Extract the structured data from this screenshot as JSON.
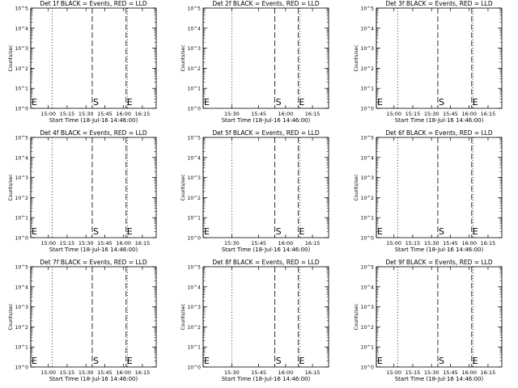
{
  "chart_data": [
    {
      "type": "line",
      "title": "Det 1f BLACK = Events, RED = LLD",
      "xlabel": "Start Time (18-Jul-16 14:46:00)",
      "ylabel": "Counts/sec",
      "xticks": [
        "15:00",
        "15:15",
        "15:30",
        "15:45",
        "16:00",
        "16:15"
      ],
      "yticks": [
        "10^0",
        "10^1",
        "10^2",
        "10^3",
        "10^4",
        "10^5"
      ],
      "ylim": [
        1,
        100000
      ],
      "yscale": "log",
      "xlim": [
        "14:46",
        "16:26"
      ],
      "markers": [
        {
          "label": "E",
          "x": "14:46",
          "style": "solid"
        },
        {
          "label": "",
          "x": "15:03",
          "style": "dotted"
        },
        {
          "label": "S",
          "x": "15:35",
          "style": "dashed"
        },
        {
          "label": "E",
          "x": "16:02",
          "style": "dashed"
        },
        {
          "label": "",
          "x": "16:03",
          "style": "dotted"
        },
        {
          "label": "",
          "x": "16:26",
          "style": "dotted"
        }
      ],
      "series": []
    },
    {
      "type": "line",
      "title": "Det 2f BLACK = Events, RED = LLD",
      "xlabel": "Start Time (18-Jul-16 14:46:00)",
      "ylabel": "Counts/sec",
      "xticks": [
        "15:30",
        "15:45",
        "16:00",
        "16:15"
      ],
      "yticks": [
        "10^0",
        "10^1",
        "10^2",
        "10^3",
        "10^4",
        "10^5"
      ],
      "ylim": [
        1,
        100000
      ],
      "yscale": "log",
      "xlim": [
        "15:14",
        "16:24"
      ],
      "markers": [
        {
          "label": "E",
          "x": "15:14",
          "style": "solid"
        },
        {
          "label": "",
          "x": "15:30",
          "style": "dotted"
        },
        {
          "label": "S",
          "x": "15:54",
          "style": "dashed"
        },
        {
          "label": "E",
          "x": "16:07",
          "style": "dashed"
        },
        {
          "label": "",
          "x": "16:08",
          "style": "dotted"
        },
        {
          "label": "",
          "x": "16:24",
          "style": "dotted"
        }
      ],
      "series": []
    },
    {
      "type": "line",
      "title": "Det 3f BLACK = Events, RED = LLD",
      "xlabel": "Start Time (18-Jul-16 14:46:00)",
      "ylabel": "Counts/sec",
      "xticks": [
        "15:00",
        "15:15",
        "15:30",
        "15:45",
        "16:00",
        "16:15"
      ],
      "yticks": [
        "10^0",
        "10^1",
        "10^2",
        "10^3",
        "10^4",
        "10^5"
      ],
      "ylim": [
        1,
        100000
      ],
      "yscale": "log",
      "xlim": [
        "14:46",
        "16:26"
      ],
      "markers": [
        {
          "label": "E",
          "x": "14:46",
          "style": "solid"
        },
        {
          "label": "",
          "x": "15:03",
          "style": "dotted"
        },
        {
          "label": "S",
          "x": "15:35",
          "style": "dashed"
        },
        {
          "label": "E",
          "x": "16:02",
          "style": "dashed"
        },
        {
          "label": "",
          "x": "16:03",
          "style": "dotted"
        },
        {
          "label": "",
          "x": "16:26",
          "style": "dotted"
        }
      ],
      "series": []
    },
    {
      "type": "line",
      "title": "Det 4f BLACK = Events, RED = LLD",
      "xlabel": "Start Time (18-Jul-16 14:46:00)",
      "ylabel": "Counts/sec",
      "xticks": [
        "15:00",
        "15:15",
        "15:30",
        "15:45",
        "16:00",
        "16:15"
      ],
      "yticks": [
        "10^0",
        "10^1",
        "10^2",
        "10^3",
        "10^4",
        "10^5"
      ],
      "ylim": [
        1,
        100000
      ],
      "yscale": "log",
      "xlim": [
        "14:46",
        "16:26"
      ],
      "markers": [
        {
          "label": "E",
          "x": "14:46",
          "style": "solid"
        },
        {
          "label": "",
          "x": "15:03",
          "style": "dotted"
        },
        {
          "label": "S",
          "x": "15:35",
          "style": "dashed"
        },
        {
          "label": "E",
          "x": "16:02",
          "style": "dashed"
        },
        {
          "label": "",
          "x": "16:03",
          "style": "dotted"
        },
        {
          "label": "",
          "x": "16:26",
          "style": "dotted"
        }
      ],
      "series": []
    },
    {
      "type": "line",
      "title": "Det 5f BLACK = Events, RED = LLD",
      "xlabel": "Start Time (18-Jul-16 14:46:00)",
      "ylabel": "Counts/sec",
      "xticks": [
        "15:30",
        "15:45",
        "16:00",
        "16:15"
      ],
      "yticks": [
        "10^0",
        "10^1",
        "10^2",
        "10^3",
        "10^4",
        "10^5"
      ],
      "ylim": [
        1,
        100000
      ],
      "yscale": "log",
      "xlim": [
        "15:14",
        "16:24"
      ],
      "markers": [
        {
          "label": "E",
          "x": "15:14",
          "style": "solid"
        },
        {
          "label": "",
          "x": "15:30",
          "style": "dotted"
        },
        {
          "label": "S",
          "x": "15:54",
          "style": "dashed"
        },
        {
          "label": "E",
          "x": "16:07",
          "style": "dashed"
        },
        {
          "label": "",
          "x": "16:08",
          "style": "dotted"
        },
        {
          "label": "",
          "x": "16:24",
          "style": "dotted"
        }
      ],
      "series": []
    },
    {
      "type": "line",
      "title": "Det 6f BLACK = Events, RED = LLD",
      "xlabel": "Start Time (18-Jul-16 14:46:00)",
      "ylabel": "Counts/sec",
      "xticks": [
        "15:00",
        "15:15",
        "15:30",
        "15:45",
        "16:00",
        "16:15"
      ],
      "yticks": [
        "10^0",
        "10^1",
        "10^2",
        "10^3",
        "10^4",
        "10^5"
      ],
      "ylim": [
        1,
        100000
      ],
      "yscale": "log",
      "xlim": [
        "14:46",
        "16:26"
      ],
      "markers": [
        {
          "label": "E",
          "x": "14:46",
          "style": "solid"
        },
        {
          "label": "",
          "x": "15:03",
          "style": "dotted"
        },
        {
          "label": "S",
          "x": "15:35",
          "style": "dashed"
        },
        {
          "label": "E",
          "x": "16:02",
          "style": "dashed"
        },
        {
          "label": "",
          "x": "16:03",
          "style": "dotted"
        },
        {
          "label": "",
          "x": "16:26",
          "style": "dotted"
        }
      ],
      "series": []
    },
    {
      "type": "line",
      "title": "Det 7f BLACK = Events, RED = LLD",
      "xlabel": "Start Time (18-Jul-16 14:46:00)",
      "ylabel": "Counts/sec",
      "xticks": [
        "15:00",
        "15:15",
        "15:30",
        "15:45",
        "16:00",
        "16:15"
      ],
      "yticks": [
        "10^0",
        "10^1",
        "10^2",
        "10^3",
        "10^4",
        "10^5"
      ],
      "ylim": [
        1,
        100000
      ],
      "yscale": "log",
      "xlim": [
        "14:46",
        "16:26"
      ],
      "markers": [
        {
          "label": "E",
          "x": "14:46",
          "style": "solid"
        },
        {
          "label": "",
          "x": "15:03",
          "style": "dotted"
        },
        {
          "label": "S",
          "x": "15:35",
          "style": "dashed"
        },
        {
          "label": "E",
          "x": "16:02",
          "style": "dashed"
        },
        {
          "label": "",
          "x": "16:03",
          "style": "dotted"
        },
        {
          "label": "",
          "x": "16:26",
          "style": "dotted"
        }
      ],
      "series": []
    },
    {
      "type": "line",
      "title": "Det 8f BLACK = Events, RED = LLD",
      "xlabel": "Start Time (18-Jul-16 14:46:00)",
      "ylabel": "Counts/sec",
      "xticks": [
        "15:30",
        "15:45",
        "16:00",
        "16:15"
      ],
      "yticks": [
        "10^0",
        "10^1",
        "10^2",
        "10^3",
        "10^4",
        "10^5"
      ],
      "ylim": [
        1,
        100000
      ],
      "yscale": "log",
      "xlim": [
        "15:14",
        "16:24"
      ],
      "markers": [
        {
          "label": "E",
          "x": "15:14",
          "style": "solid"
        },
        {
          "label": "",
          "x": "15:30",
          "style": "dotted"
        },
        {
          "label": "S",
          "x": "15:54",
          "style": "dashed"
        },
        {
          "label": "E",
          "x": "16:07",
          "style": "dashed"
        },
        {
          "label": "",
          "x": "16:08",
          "style": "dotted"
        },
        {
          "label": "",
          "x": "16:24",
          "style": "dotted"
        }
      ],
      "series": []
    },
    {
      "type": "line",
      "title": "Det 9f BLACK = Events, RED = LLD",
      "xlabel": "Start Time (18-Jul-16 14:46:00)",
      "ylabel": "Counts/sec",
      "xticks": [
        "15:00",
        "15:15",
        "15:30",
        "15:45",
        "16:00",
        "16:15"
      ],
      "yticks": [
        "10^0",
        "10^1",
        "10^2",
        "10^3",
        "10^4",
        "10^5"
      ],
      "ylim": [
        1,
        100000
      ],
      "yscale": "log",
      "xlim": [
        "14:46",
        "16:26"
      ],
      "markers": [
        {
          "label": "E",
          "x": "14:46",
          "style": "solid"
        },
        {
          "label": "",
          "x": "15:03",
          "style": "dotted"
        },
        {
          "label": "S",
          "x": "15:35",
          "style": "dashed"
        },
        {
          "label": "E",
          "x": "16:02",
          "style": "dashed"
        },
        {
          "label": "",
          "x": "16:03",
          "style": "dotted"
        },
        {
          "label": "",
          "x": "16:26",
          "style": "dotted"
        }
      ],
      "series": []
    }
  ]
}
